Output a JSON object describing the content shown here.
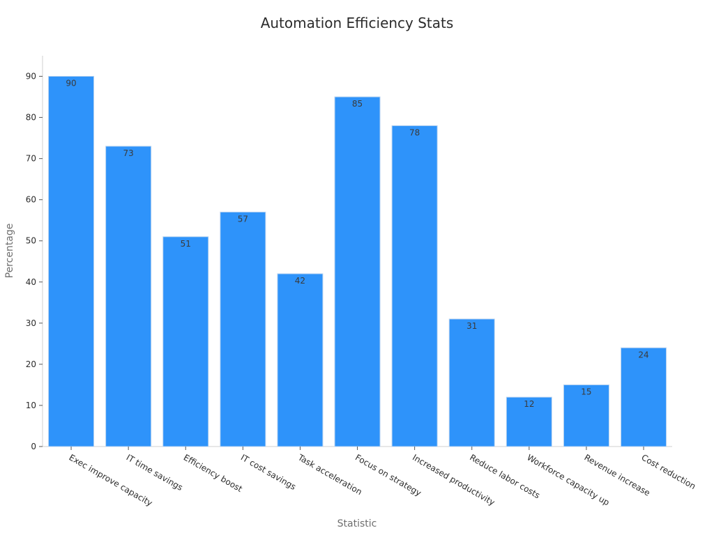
{
  "chart_data": {
    "type": "bar",
    "title": "Automation Efficiency Stats",
    "xlabel": "Statistic",
    "ylabel": "Percentage",
    "categories": [
      "Exec improve capacity",
      "IT time savings",
      "Efficiency boost",
      "IT cost savings",
      "Task acceleration",
      "Focus on strategy",
      "Increased productivity",
      "Reduce labor costs",
      "Workforce capacity up",
      "Revenue increase",
      "Cost reduction"
    ],
    "values": [
      90,
      73,
      51,
      57,
      42,
      85,
      78,
      31,
      12,
      15,
      24
    ],
    "ylim": [
      0,
      95
    ],
    "yticks": [
      0,
      10,
      20,
      30,
      40,
      50,
      60,
      70,
      80,
      90
    ],
    "grid": false,
    "legend": "none",
    "bar_color": "#2e93fa"
  }
}
